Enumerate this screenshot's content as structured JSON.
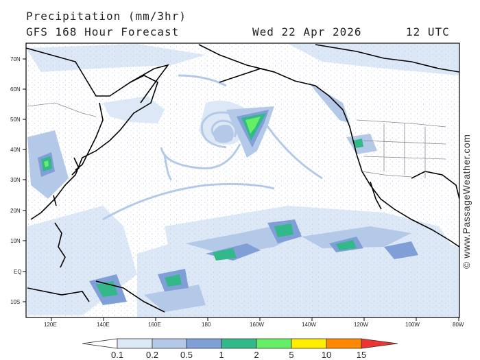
{
  "header": {
    "title": "Precipitation (mm/3hr)",
    "subtitle": "GFS 168 Hour Forecast",
    "date": "Wed 22 Apr 2026",
    "time": "12 UTC"
  },
  "map": {
    "lat_labels": [
      "70N",
      "60N",
      "50N",
      "40N",
      "30N",
      "20N",
      "10N",
      "EQ",
      "10S"
    ],
    "lon_labels": [
      "120E",
      "140E",
      "160E",
      "180",
      "160W",
      "140W",
      "120W",
      "100W",
      "80W"
    ]
  },
  "watermark": "© www.PassageWeather.com",
  "legend": {
    "labels": [
      "0.1",
      "0.2",
      "0.5",
      "1",
      "2",
      "5",
      "10",
      "15"
    ],
    "colors": [
      "#ffffff",
      "#dde8f6",
      "#b4c9e7",
      "#7f9fd6",
      "#33b889",
      "#66ee66",
      "#ffee00",
      "#ff8800",
      "#ee3333"
    ]
  },
  "colors": {
    "land_outline": "#000000",
    "borders": "#777777",
    "precip_light": "#dde8f6",
    "precip_mid": "#b4c9e7",
    "precip_heavy": "#7f9fd6",
    "precip_teal": "#33b889",
    "precip_green": "#66ee66"
  }
}
